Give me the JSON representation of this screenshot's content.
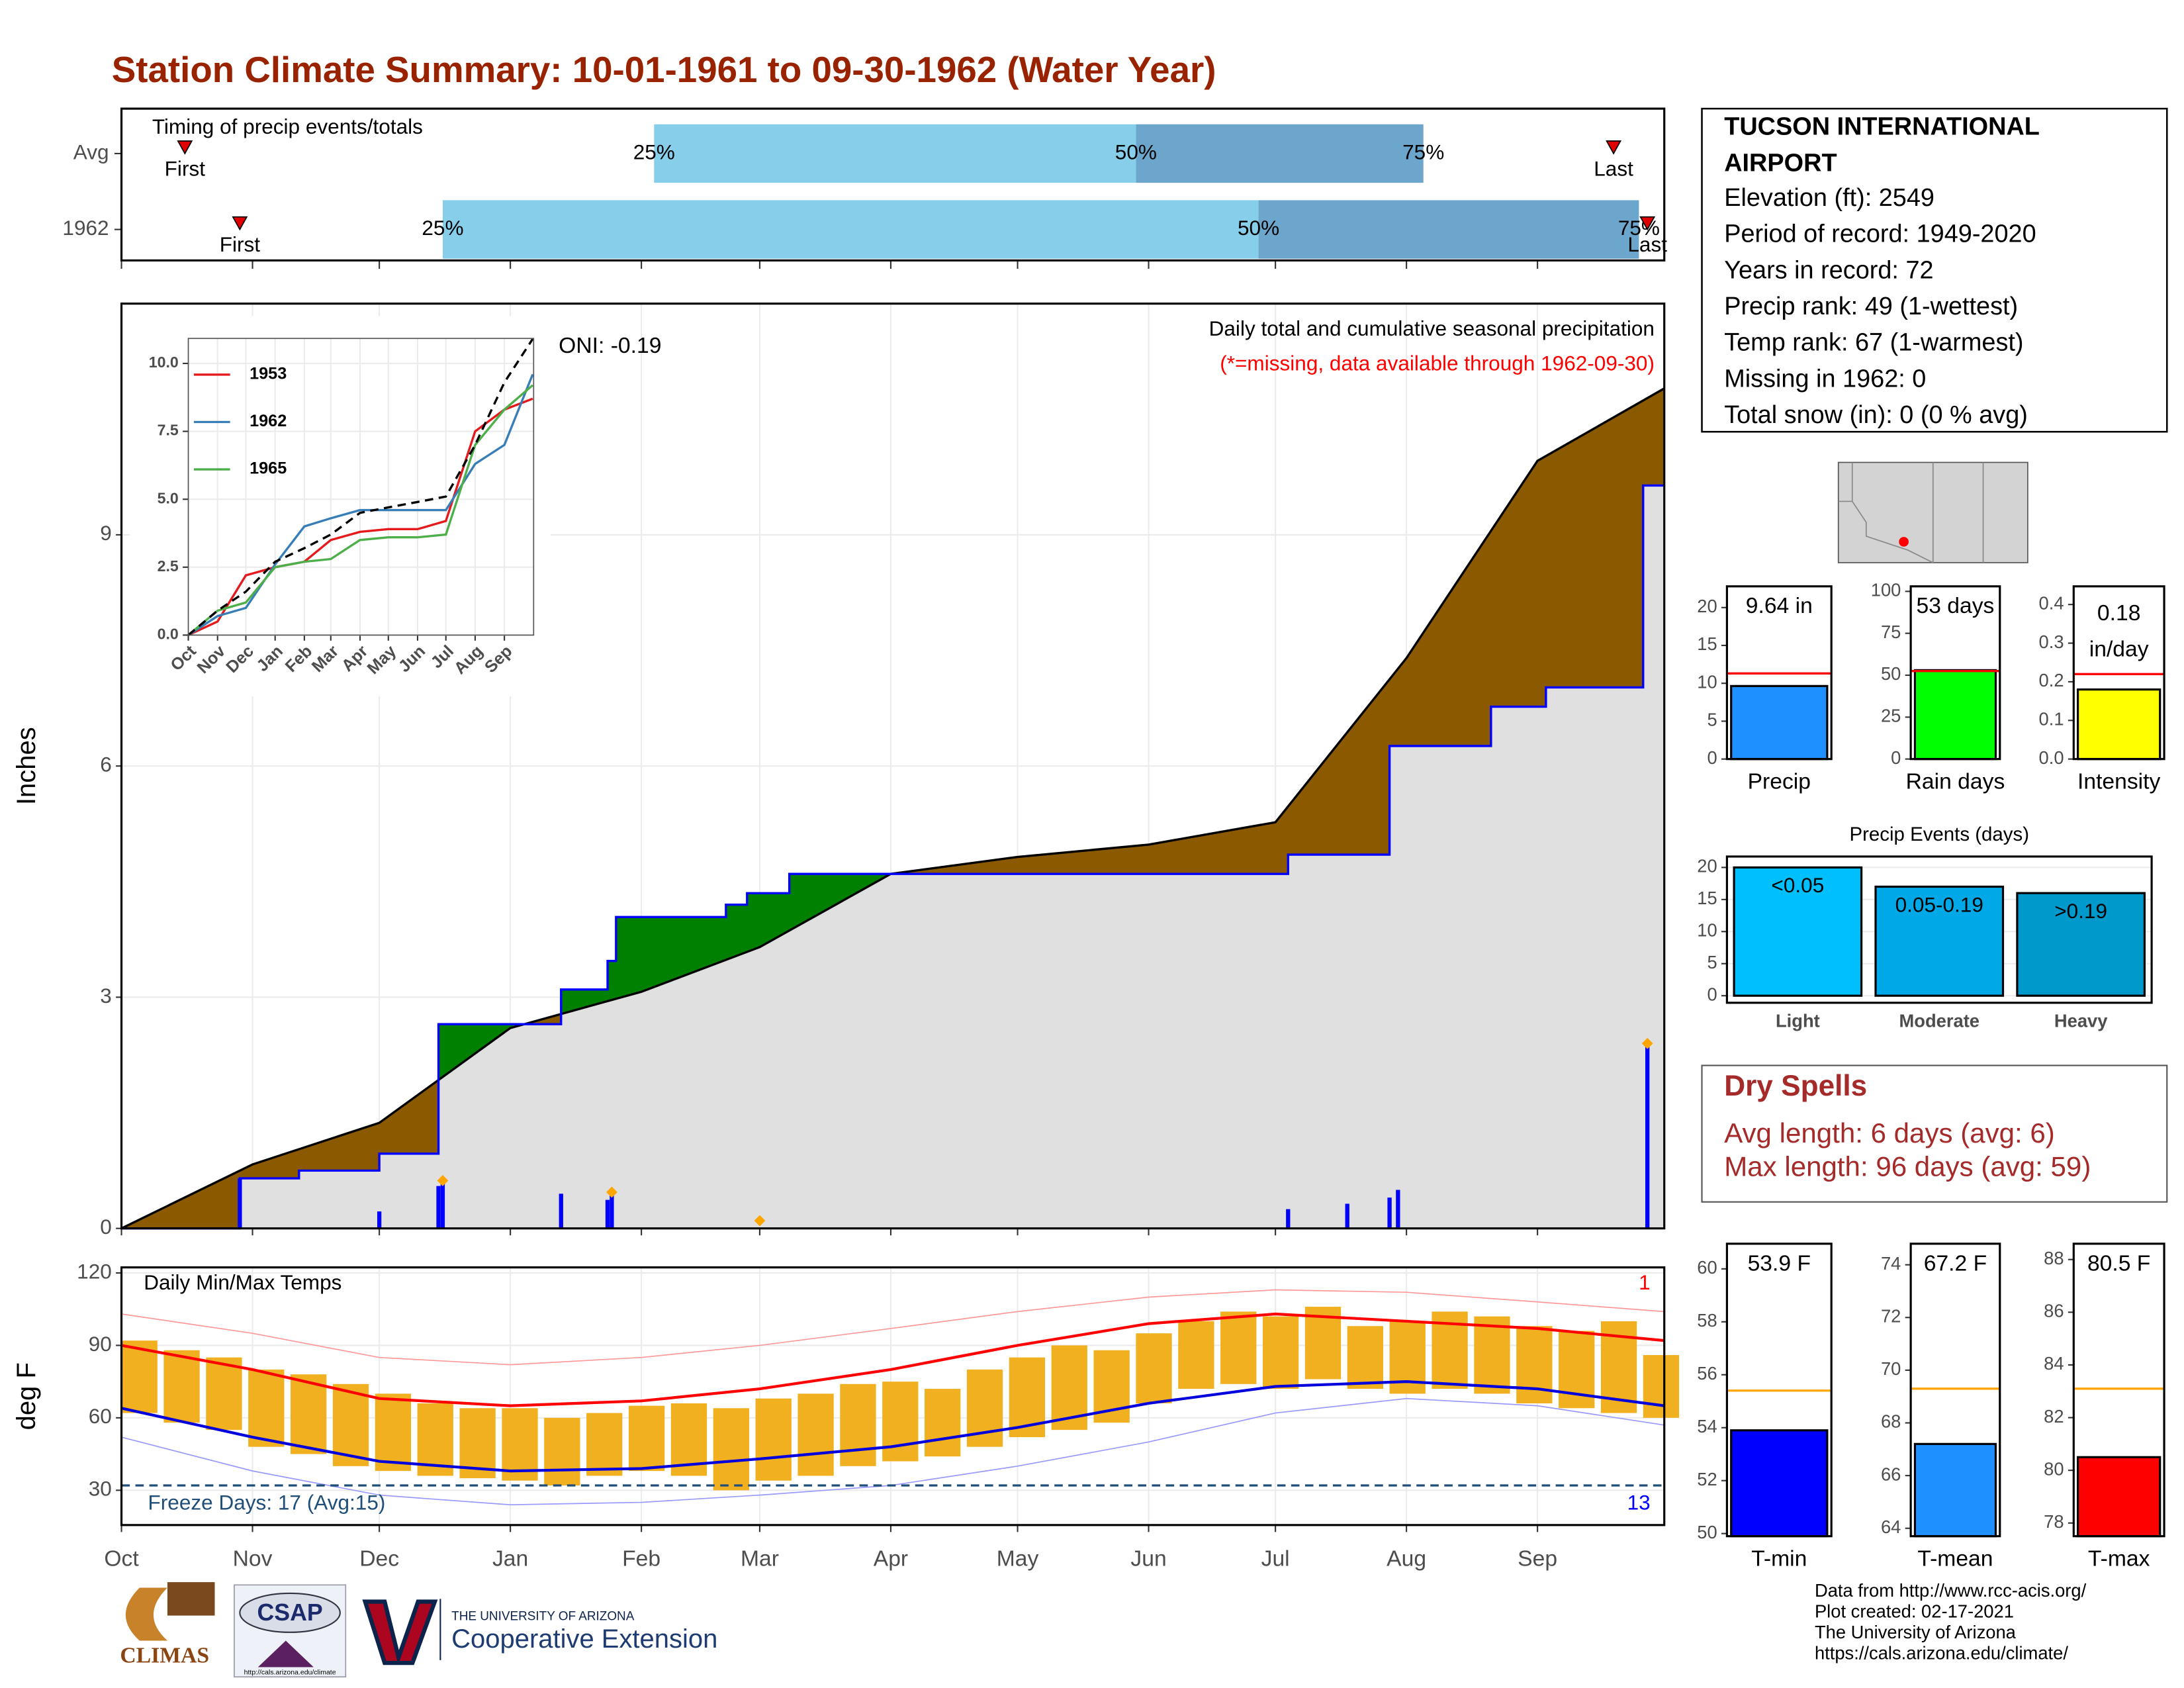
{
  "title": "Station Climate Summary: 10-01-1961 to 09-30-1962 (Water Year)",
  "station": {
    "name_lines": [
      "TUCSON INTERNATIONAL",
      "AIRPORT"
    ],
    "lines": [
      "Elevation (ft): 2549",
      "Period of record: 1949-2020",
      "Years in record: 72",
      "Precip rank: 49 (1-wettest)",
      "Temp rank: 67 (1-warmest)",
      "Missing in 1962: 0",
      "Total snow (in): 0 (0 % avg)"
    ]
  },
  "dry_spells": {
    "title": "Dry Spells",
    "lines": [
      "Avg length: 6 days (avg: 6)",
      "Max length: 96 days (avg: 59)"
    ]
  },
  "footer": [
    "Data from http://www.rcc-acis.org/",
    "Plot created: 02-17-2021",
    "The University of Arizona",
    "https://cals.arizona.edu/climate/"
  ],
  "logos": {
    "climas": "CLIMAS",
    "csap": "CSAP",
    "csap_url": "http://cals.arizona.edu/climate",
    "ua_small": "THE UNIVERSITY OF ARIZONA",
    "ua_big": "Cooperative Extension"
  },
  "chart_data": [
    {
      "type": "timing",
      "title": "Timing of precip events/totals",
      "categories": [
        "Avg",
        "1962"
      ],
      "first": [
        15,
        28
      ],
      "q25": [
        126,
        76
      ],
      "q50": [
        240,
        269
      ],
      "q75": [
        308,
        359
      ],
      "last": [
        353,
        361
      ],
      "marker_labels": [
        "First",
        "Last"
      ],
      "quartile_labels": [
        "25%",
        "50%",
        "75%"
      ],
      "colors": [
        "#87ceeb",
        "#6ca6cd"
      ],
      "marker_color": "#e00000",
      "xlim": [
        0,
        365
      ],
      "xticks": [
        0,
        31,
        61,
        92,
        123,
        151,
        182,
        212,
        243,
        273,
        304,
        335
      ]
    },
    {
      "type": "cumulative",
      "ylabel": "Inches",
      "annotations": [
        "Daily total and cumulative seasonal precipitation",
        "(*=missing, data available through 1962-09-30)",
        "ONI: -0.19"
      ],
      "xlim": [
        0,
        365
      ],
      "ylim": [
        0,
        12
      ],
      "xticks": [
        0,
        31,
        61,
        92,
        123,
        151,
        182,
        212,
        243,
        273,
        304,
        335
      ],
      "yticks": [
        0,
        3,
        6,
        9
      ],
      "grid": true,
      "fill_colors": [
        "#8b5a00",
        "#008000",
        "#e0e0e0"
      ],
      "series": [
        {
          "color": "#000000",
          "x": [
            0,
            31,
            61,
            92,
            123,
            151,
            182,
            212,
            243,
            273,
            304,
            335,
            365
          ],
          "values": [
            0,
            0.83,
            1.37,
            2.6,
            3.07,
            3.65,
            4.6,
            4.82,
            4.98,
            5.27,
            7.4,
            9.96,
            10.9
          ]
        },
        {
          "color": "#0000ff",
          "x": [
            0,
            28,
            28,
            42,
            42,
            61,
            61,
            75,
            75,
            104,
            104,
            115,
            115,
            117,
            117,
            143,
            143,
            148,
            148,
            158,
            158,
            276,
            276,
            300,
            300,
            324,
            324,
            337,
            337,
            360,
            360,
            365
          ],
          "values": [
            0,
            0,
            0.65,
            0.65,
            0.75,
            0.75,
            0.97,
            0.97,
            2.65,
            2.65,
            3.1,
            3.1,
            3.47,
            3.47,
            4.04,
            4.04,
            4.2,
            4.2,
            4.35,
            4.35,
            4.6,
            4.6,
            4.85,
            4.85,
            6.26,
            6.26,
            6.77,
            6.77,
            7.02,
            7.02,
            9.64,
            9.64
          ]
        }
      ],
      "daily": {
        "color": "#0000ff",
        "x": [
          28,
          61,
          75,
          76,
          104,
          115,
          116,
          276,
          290,
          300,
          302,
          361
        ],
        "values": [
          0.65,
          0.22,
          0.55,
          0.6,
          0.45,
          0.37,
          0.45,
          0.25,
          0.32,
          0.4,
          0.5,
          2.4
        ]
      },
      "records": {
        "color": "#ffa500",
        "x": [
          76,
          116,
          151,
          361
        ],
        "values": [
          0.62,
          0.47,
          0.1,
          2.4
        ]
      }
    },
    {
      "type": "line",
      "xlim": [
        0,
        366
      ],
      "ylim": [
        0,
        10.92
      ],
      "xticks": [
        {
          "value": 0,
          "label": "Oct"
        },
        {
          "value": 31,
          "label": "Nov"
        },
        {
          "value": 61,
          "label": "Dec"
        },
        {
          "value": 92,
          "label": "Jan"
        },
        {
          "value": 123,
          "label": "Feb"
        },
        {
          "value": 151,
          "label": "Mar"
        },
        {
          "value": 182,
          "label": "Apr"
        },
        {
          "value": 212,
          "label": "May"
        },
        {
          "value": 243,
          "label": "Jun"
        },
        {
          "value": 273,
          "label": "Jul"
        },
        {
          "value": 304,
          "label": "Aug"
        },
        {
          "value": 335,
          "label": "Sep"
        }
      ],
      "yticks": [
        {
          "value": 0,
          "label": "0.0"
        },
        {
          "value": 2.5,
          "label": "2.5"
        },
        {
          "value": 5,
          "label": "5.0"
        },
        {
          "value": 7.5,
          "label": "7.5"
        },
        {
          "value": 10,
          "label": "10.0"
        }
      ],
      "grid": true,
      "x": [
        0,
        31,
        61,
        92,
        123,
        151,
        182,
        212,
        243,
        273,
        304,
        335,
        365
      ],
      "series": [
        {
          "name": "1953",
          "color": "#e41a1c",
          "values": [
            0,
            0.5,
            2.2,
            2.5,
            2.7,
            3.5,
            3.8,
            3.9,
            3.9,
            4.2,
            7.5,
            8.3,
            8.7
          ]
        },
        {
          "name": "1962",
          "color": "#377eb8",
          "values": [
            0,
            0.7,
            1.0,
            2.6,
            4.0,
            4.3,
            4.6,
            4.6,
            4.6,
            4.6,
            6.3,
            7.0,
            9.6
          ]
        },
        {
          "name": "1965",
          "color": "#4daf4a",
          "values": [
            0,
            0.9,
            1.2,
            2.5,
            2.7,
            2.8,
            3.5,
            3.6,
            3.6,
            3.7,
            7.0,
            8.3,
            9.2
          ]
        },
        {
          "color": "#000000",
          "linestyle": "dashed",
          "values": [
            0,
            0.9,
            1.6,
            2.7,
            3.2,
            3.7,
            4.5,
            4.7,
            4.9,
            5.1,
            7.0,
            9.3,
            10.9
          ]
        }
      ]
    },
    {
      "type": "range",
      "ylabel": "deg F",
      "annotations": [
        "Daily Min/Max Temps",
        "Freeze Days: 17 (Avg:15)",
        "1",
        "13"
      ],
      "xlim": [
        0,
        365
      ],
      "ylim": [
        15.6,
        122.3
      ],
      "xticks": [
        {
          "value": 0,
          "label": "Oct"
        },
        {
          "value": 31,
          "label": "Nov"
        },
        {
          "value": 61,
          "label": "Dec"
        },
        {
          "value": 92,
          "label": "Jan"
        },
        {
          "value": 123,
          "label": "Feb"
        },
        {
          "value": 151,
          "label": "Mar"
        },
        {
          "value": 182,
          "label": "Apr"
        },
        {
          "value": 212,
          "label": "May"
        },
        {
          "value": 243,
          "label": "Jun"
        },
        {
          "value": 273,
          "label": "Jul"
        },
        {
          "value": 304,
          "label": "Aug"
        },
        {
          "value": 335,
          "label": "Sep"
        }
      ],
      "yticks": [
        30,
        60,
        90,
        120
      ],
      "grid": true,
      "freeze": 32,
      "freeze_color": "#1f4e79",
      "daily": {
        "color": "#f0b020",
        "x": [
          0,
          10,
          20,
          30,
          40,
          50,
          60,
          70,
          80,
          90,
          100,
          110,
          120,
          130,
          140,
          150,
          160,
          170,
          180,
          190,
          200,
          210,
          220,
          230,
          240,
          250,
          260,
          270,
          280,
          290,
          300,
          310,
          320,
          330,
          340,
          350,
          360
        ],
        "max": [
          92,
          88,
          85,
          80,
          78,
          74,
          70,
          66,
          64,
          64,
          60,
          62,
          65,
          66,
          64,
          68,
          70,
          74,
          75,
          72,
          80,
          85,
          90,
          88,
          95,
          100,
          104,
          102,
          106,
          98,
          100,
          104,
          102,
          98,
          96,
          100,
          86
        ],
        "min": [
          62,
          58,
          55,
          48,
          45,
          40,
          38,
          36,
          35,
          34,
          32,
          36,
          38,
          36,
          30,
          34,
          36,
          40,
          42,
          44,
          48,
          52,
          55,
          58,
          66,
          72,
          74,
          72,
          76,
          72,
          70,
          72,
          70,
          66,
          64,
          62,
          60
        ]
      },
      "x": [
        0,
        31,
        61,
        92,
        123,
        151,
        182,
        212,
        243,
        273,
        304,
        335,
        365
      ],
      "series": [
        {
          "color": "#ff9999",
          "width": 0.8,
          "values": [
            103,
            95,
            85,
            82,
            85,
            90,
            97,
            104,
            110,
            113,
            112,
            108,
            104
          ]
        },
        {
          "color": "#9999ff",
          "width": 0.8,
          "values": [
            52,
            38,
            28,
            24,
            25,
            28,
            32,
            40,
            50,
            62,
            68,
            65,
            57
          ]
        },
        {
          "color": "#ff0000",
          "width": 2,
          "values": [
            90,
            80,
            68,
            65,
            67,
            72,
            80,
            90,
            99,
            103,
            100,
            97,
            92
          ]
        },
        {
          "color": "#0000dd",
          "width": 2,
          "values": [
            64,
            52,
            42,
            38,
            39,
            43,
            48,
            56,
            66,
            73,
            75,
            72,
            65
          ]
        }
      ]
    },
    {
      "type": "summary-bar",
      "xlabel": "Precip",
      "value": 9.64,
      "value_label": "9.64 in",
      "avg": 11.3,
      "color": "#1e90ff",
      "avg_color": "#ff0000",
      "ylim": [
        0,
        22.8
      ],
      "yticks": [
        0,
        5,
        10,
        15,
        20
      ]
    },
    {
      "type": "summary-bar",
      "xlabel": "Rain days",
      "value": 53,
      "value_label": "53 days",
      "avg": 52.5,
      "color": "#00ff00",
      "avg_color": "#ff0000",
      "ylim": [
        0,
        103
      ],
      "yticks": [
        0,
        25,
        50,
        75,
        100
      ]
    },
    {
      "type": "summary-bar",
      "xlabel": "Intensity",
      "value": 0.18,
      "value_label": "0.18 in/day",
      "avg": 0.22,
      "color": "#ffff00",
      "avg_color": "#ff0000",
      "ylim": [
        0,
        0.447
      ],
      "yticks": [
        {
          "value": 0,
          "label": "0.0"
        },
        {
          "value": 0.1,
          "label": "0.1"
        },
        {
          "value": 0.2,
          "label": "0.2"
        },
        {
          "value": 0.3,
          "label": "0.3"
        },
        {
          "value": 0.4,
          "label": "0.4"
        }
      ]
    },
    {
      "type": "bar",
      "title": "Precip Events (days)",
      "categories": [
        "Light",
        "Moderate",
        "Heavy"
      ],
      "values": [
        20,
        17,
        16
      ],
      "value_labels": [
        "<0.05",
        "0.05-0.19",
        ">0.19"
      ],
      "colors": [
        "#00bfff",
        "#00a8e8",
        "#0099cc"
      ],
      "ylim": [
        -1.1,
        21.7
      ],
      "yticks": [
        0,
        5,
        10,
        15,
        20
      ],
      "grid": true
    },
    {
      "type": "summary-bar",
      "xlabel": "T-min",
      "value": 53.9,
      "value_label": "53.9 F",
      "avg": 55.4,
      "color": "#0000ff",
      "avg_color": "#ffa500",
      "ylim": [
        49.9,
        60.95
      ],
      "yticks": [
        50,
        52,
        54,
        56,
        58,
        60
      ]
    },
    {
      "type": "summary-bar",
      "xlabel": "T-mean",
      "value": 67.2,
      "value_label": "67.2 F",
      "avg": 69.3,
      "color": "#1e90ff",
      "avg_color": "#ffa500",
      "ylim": [
        63.7,
        74.8
      ],
      "yticks": [
        64,
        66,
        68,
        70,
        72,
        74
      ]
    },
    {
      "type": "summary-bar",
      "xlabel": "T-max",
      "value": 80.5,
      "value_label": "80.5 F",
      "avg": 83.1,
      "color": "#ff0000",
      "avg_color": "#ffa500",
      "ylim": [
        77.5,
        88.6
      ],
      "yticks": [
        78,
        80,
        82,
        84,
        86,
        88
      ]
    }
  ]
}
